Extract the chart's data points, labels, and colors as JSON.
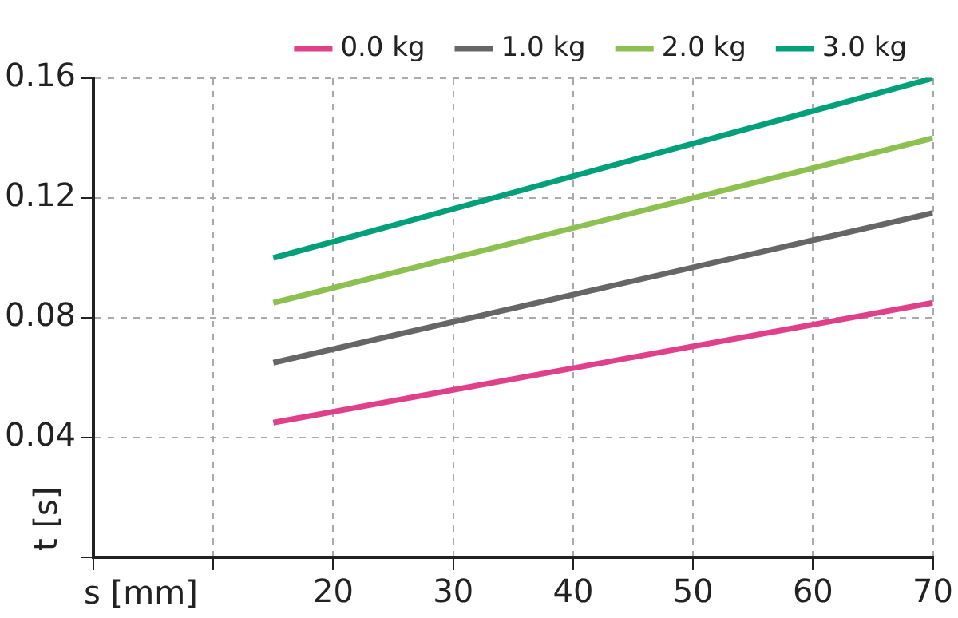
{
  "chart_data": {
    "type": "line",
    "xlabel": "s [mm]",
    "ylabel": "t [s]",
    "x": [
      15,
      70
    ],
    "xlim": [
      0,
      70
    ],
    "xticks": [
      {
        "value": 0,
        "label": null
      },
      {
        "value": 10,
        "label": null
      },
      20,
      30,
      40,
      50,
      60,
      70
    ],
    "ylim": [
      0,
      0.16
    ],
    "yticks": [
      {
        "value": 0,
        "label": null
      },
      0.04,
      0.08,
      0.12,
      0.16
    ],
    "grid": true,
    "legend": "top",
    "line_style": "solid",
    "marker": "none",
    "series": [
      {
        "name": "0.0 kg",
        "color": "#e0408a",
        "values": [
          0.045,
          0.085
        ]
      },
      {
        "name": "1.0 kg",
        "color": "#666666",
        "values": [
          0.065,
          0.115
        ]
      },
      {
        "name": "2.0 kg",
        "color": "#8cc152",
        "values": [
          0.085,
          0.14
        ]
      },
      {
        "name": "3.0 kg",
        "color": "#00a07a",
        "values": [
          0.1,
          0.16
        ]
      }
    ]
  }
}
